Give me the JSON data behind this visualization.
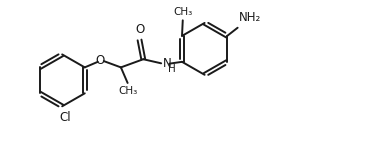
{
  "background_color": "#ffffff",
  "line_color": "#1a1a1a",
  "line_width": 1.4,
  "font_size": 8.5,
  "figsize": [
    3.74,
    1.57
  ],
  "dpi": 100,
  "xlim": [
    0,
    10
  ],
  "ylim": [
    0,
    4.2
  ]
}
